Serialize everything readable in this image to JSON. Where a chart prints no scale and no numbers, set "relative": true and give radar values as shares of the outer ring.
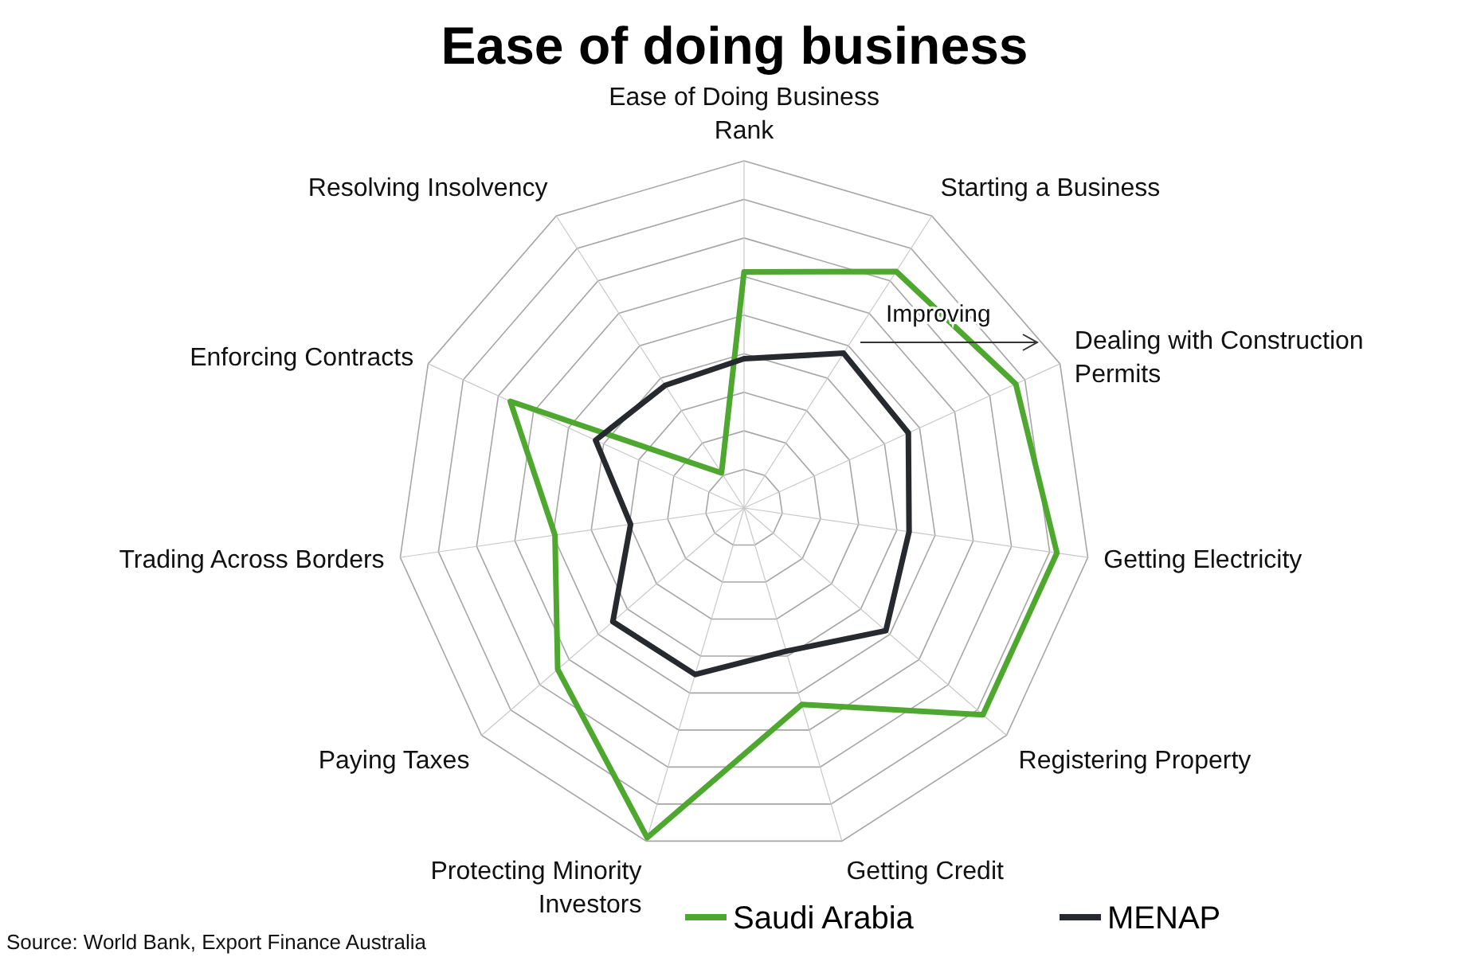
{
  "chart_data": {
    "type": "radar",
    "title": "Ease of doing business",
    "relative": true,
    "categories": [
      "Ease of Doing Business Rank",
      "Starting a Business",
      "Dealing with Construction Permits",
      "Getting Electricity",
      "Registering Property",
      "Getting Credit",
      "Protecting Minority Investors",
      "Paying Taxes",
      "Trading Across Borders",
      "Enforcing Contracts",
      "Resolving Insolvency"
    ],
    "series": [
      {
        "name": "Saudi Arabia",
        "color": "#4ea72e",
        "values": [
          0.68,
          0.81,
          0.86,
          0.91,
          0.91,
          0.59,
          0.99,
          0.71,
          0.55,
          0.74,
          0.12
        ]
      },
      {
        "name": "MENAP",
        "color": "#262a2e",
        "values": [
          0.43,
          0.53,
          0.52,
          0.48,
          0.54,
          0.43,
          0.5,
          0.5,
          0.33,
          0.47,
          0.42
        ]
      }
    ],
    "legend": "bottom",
    "grid": true,
    "marker": "none",
    "line_style": "solid",
    "annotations": [
      "Improving",
      "Source: World Bank, Export Finance Australia"
    ]
  }
}
